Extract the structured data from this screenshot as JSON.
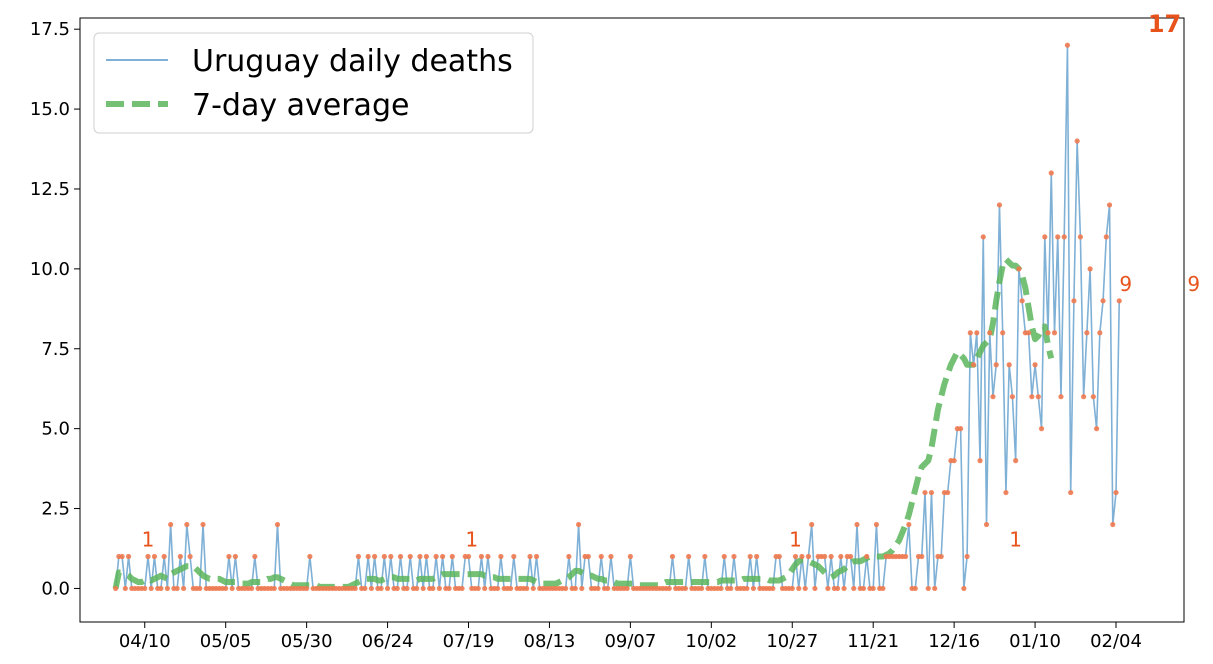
{
  "chart_data": {
    "type": "line",
    "title": "",
    "xlabel": "",
    "ylabel": "",
    "start_date": "2020-04-01",
    "ylim": [
      -1.05,
      17.85
    ],
    "yticks": [
      0.0,
      2.5,
      5.0,
      7.5,
      10.0,
      12.5,
      15.0,
      17.5
    ],
    "ytick_labels": [
      "0.0",
      "2.5",
      "5.0",
      "7.5",
      "10.0",
      "12.5",
      "15.0",
      "17.5"
    ],
    "xticks": [
      "04/10",
      "05/05",
      "05/30",
      "06/24",
      "07/19",
      "08/13",
      "09/07",
      "10/02",
      "10/27",
      "11/21",
      "12/16",
      "01/10",
      "02/04"
    ],
    "xtick_day_offsets": [
      9,
      34,
      59,
      84,
      109,
      134,
      159,
      184,
      209,
      234,
      259,
      284,
      309
    ],
    "x_range_days": [
      -11,
      330
    ],
    "grid": false,
    "legend_placement": "top-left",
    "colors": {
      "daily_line": "#7fb0d6",
      "markers": "#f07a50",
      "avg_line": "#5cb55c",
      "annotation": "#e8531c"
    },
    "series": [
      {
        "name": "Uruguay daily deaths",
        "values": [
          0,
          1,
          1,
          0,
          1,
          0,
          0,
          0,
          0,
          0,
          1,
          0,
          1,
          0,
          0,
          1,
          0,
          2,
          0,
          0,
          1,
          0,
          2,
          1,
          0,
          0,
          0,
          2,
          0,
          0,
          0,
          0,
          0,
          0,
          0,
          1,
          0,
          1,
          0,
          0,
          0,
          0,
          0,
          1,
          0,
          0,
          0,
          0,
          0,
          0,
          2,
          0,
          0,
          0,
          0,
          0,
          0,
          0,
          0,
          0,
          1,
          0,
          0,
          0,
          0,
          0,
          0,
          0,
          0,
          0,
          0,
          0,
          0,
          0,
          0,
          1,
          0,
          0,
          1,
          0,
          1,
          0,
          0,
          1,
          0,
          1,
          0,
          0,
          1,
          0,
          0,
          1,
          0,
          0,
          1,
          0,
          1,
          0,
          0,
          1,
          0,
          1,
          0,
          0,
          1,
          0,
          0,
          0,
          1,
          1,
          0,
          0,
          0,
          1,
          0,
          1,
          0,
          0,
          0,
          1,
          0,
          0,
          0,
          1,
          0,
          0,
          0,
          0,
          1,
          0,
          1,
          0,
          0,
          0,
          0,
          0,
          0,
          0,
          0,
          0,
          1,
          0,
          0,
          2,
          0,
          1,
          1,
          0,
          0,
          0,
          1,
          0,
          0,
          1,
          0,
          0,
          0,
          0,
          0,
          1,
          0,
          0,
          0,
          0,
          0,
          0,
          0,
          0,
          0,
          0,
          0,
          0,
          1,
          0,
          0,
          0,
          0,
          1,
          0,
          0,
          0,
          0,
          1,
          0,
          0,
          0,
          0,
          0,
          1,
          0,
          0,
          1,
          0,
          0,
          0,
          0,
          1,
          0,
          1,
          0,
          0,
          0,
          0,
          0,
          1,
          1,
          0,
          0,
          0,
          0,
          1,
          0,
          1,
          0,
          1,
          2,
          0,
          1,
          1,
          1,
          0,
          1,
          0,
          0,
          1,
          0,
          1,
          1,
          0,
          2,
          0,
          0,
          1,
          0,
          0,
          2,
          0,
          0,
          1,
          1,
          1,
          1,
          1,
          1,
          1,
          2,
          0,
          0,
          1,
          1,
          3,
          0,
          3,
          0,
          1,
          1,
          3,
          3,
          4,
          4,
          5,
          5,
          0,
          1,
          8,
          7,
          8,
          4,
          11,
          2,
          8,
          6,
          7,
          12,
          8,
          3,
          7,
          6,
          4,
          10,
          9,
          8,
          8,
          6,
          7,
          6,
          5,
          11,
          8,
          13,
          8,
          11,
          6,
          11,
          17,
          3,
          9,
          14,
          11,
          6,
          8,
          10,
          6,
          5,
          8,
          9,
          11,
          12,
          2,
          3,
          9
        ],
        "annotations": [
          {
            "text": "1",
            "value": 1
          },
          {
            "text": "1",
            "value": 1
          },
          {
            "text": "1",
            "value": 1
          },
          {
            "text": "1",
            "value": 1
          },
          {
            "text": "9",
            "value": 9
          },
          {
            "text": "17",
            "value": 17,
            "bold": true
          },
          {
            "text": "9",
            "value": 9
          }
        ]
      },
      {
        "name": "7-day average",
        "values": [
          0,
          0.5,
          0.5,
          0.45,
          0.4,
          0.3,
          0.25,
          0.2,
          0.2,
          0.25,
          0.3,
          0.25,
          0.3,
          0.35,
          0.4,
          0.35,
          0.3,
          0.45,
          0.5,
          0.55,
          0.6,
          0.65,
          0.7,
          0.7,
          0.7,
          0.6,
          0.5,
          0.4,
          0.35,
          0.3,
          0.3,
          0.3,
          0.3,
          0.25,
          0.2,
          0.2,
          0.2,
          0.2,
          0.15,
          0.15,
          0.15,
          0.15,
          0.2,
          0.2,
          0.2,
          0.2,
          0.25,
          0.3,
          0.3,
          0.35,
          0.35,
          0.3,
          0.25,
          0.2,
          0.15,
          0.1,
          0.1,
          0.1,
          0.1,
          0.1,
          0.1,
          0.1,
          0.1,
          0.05,
          0.05,
          0.05,
          0.05,
          0.05,
          0.05,
          0.05,
          0.05,
          0.05,
          0.05,
          0.1,
          0.15,
          0.2,
          0.25,
          0.3,
          0.3,
          0.3,
          0.3,
          0.25,
          0.25,
          0.3,
          0.3,
          0.35,
          0.35,
          0.3,
          0.3,
          0.3,
          0.3,
          0.3,
          0.3,
          0.25,
          0.3,
          0.3,
          0.3,
          0.3,
          0.3,
          0.35,
          0.4,
          0.45,
          0.45,
          0.45,
          0.45,
          0.45,
          0.45,
          0.45,
          0.45,
          0.45,
          0.45,
          0.45,
          0.45,
          0.45,
          0.4,
          0.4,
          0.35,
          0.35,
          0.3,
          0.3,
          0.3,
          0.3,
          0.3,
          0.3,
          0.3,
          0.3,
          0.3,
          0.3,
          0.3,
          0.25,
          0.2,
          0.15,
          0.15,
          0.15,
          0.15,
          0.15,
          0.15,
          0.2,
          0.25,
          0.3,
          0.35,
          0.45,
          0.55,
          0.55,
          0.5,
          0.45,
          0.4,
          0.4,
          0.35,
          0.3,
          0.3,
          0.25,
          0.25,
          0.2,
          0.2,
          0.15,
          0.15,
          0.15,
          0.15,
          0.15,
          0.15,
          0.1,
          0.1,
          0.1,
          0.1,
          0.1,
          0.1,
          0.1,
          0.1,
          0.15,
          0.2,
          0.2,
          0.2,
          0.2,
          0.2,
          0.2,
          0.2,
          0.2,
          0.2,
          0.2,
          0.2,
          0.2,
          0.2,
          0.2,
          0.2,
          0.2,
          0.2,
          0.25,
          0.25,
          0.25,
          0.25,
          0.25,
          0.25,
          0.25,
          0.3,
          0.3,
          0.3,
          0.3,
          0.3,
          0.3,
          0.3,
          0.3,
          0.25,
          0.25,
          0.25,
          0.25,
          0.3,
          0.35,
          0.45,
          0.6,
          0.75,
          0.85,
          0.9,
          0.9,
          0.85,
          0.8,
          0.75,
          0.7,
          0.6,
          0.5,
          0.4,
          0.35,
          0.4,
          0.5,
          0.55,
          0.6,
          0.7,
          0.8,
          0.85,
          0.85,
          0.85,
          0.9,
          0.95,
          1.0,
          1.0,
          1.0,
          1.0,
          1.0,
          1.05,
          1.1,
          1.2,
          1.35,
          1.5,
          1.75,
          2.0,
          2.3,
          2.7,
          3.1,
          3.5,
          3.8,
          3.9,
          4.0,
          4.4,
          5.0,
          5.6,
          6.0,
          6.4,
          6.7,
          7.0,
          7.2,
          7.4,
          7.3,
          7.2,
          7.0,
          7.0,
          7.0,
          7.2,
          7.4,
          7.6,
          7.7,
          7.8,
          8.3,
          9.0,
          9.6,
          10.1,
          10.3,
          10.2,
          10.1,
          10.1,
          10.0,
          9.8,
          9.4,
          8.8,
          8.2,
          7.8,
          7.9,
          8.1,
          8.2,
          7.6,
          7.2
        ]
      }
    ]
  }
}
